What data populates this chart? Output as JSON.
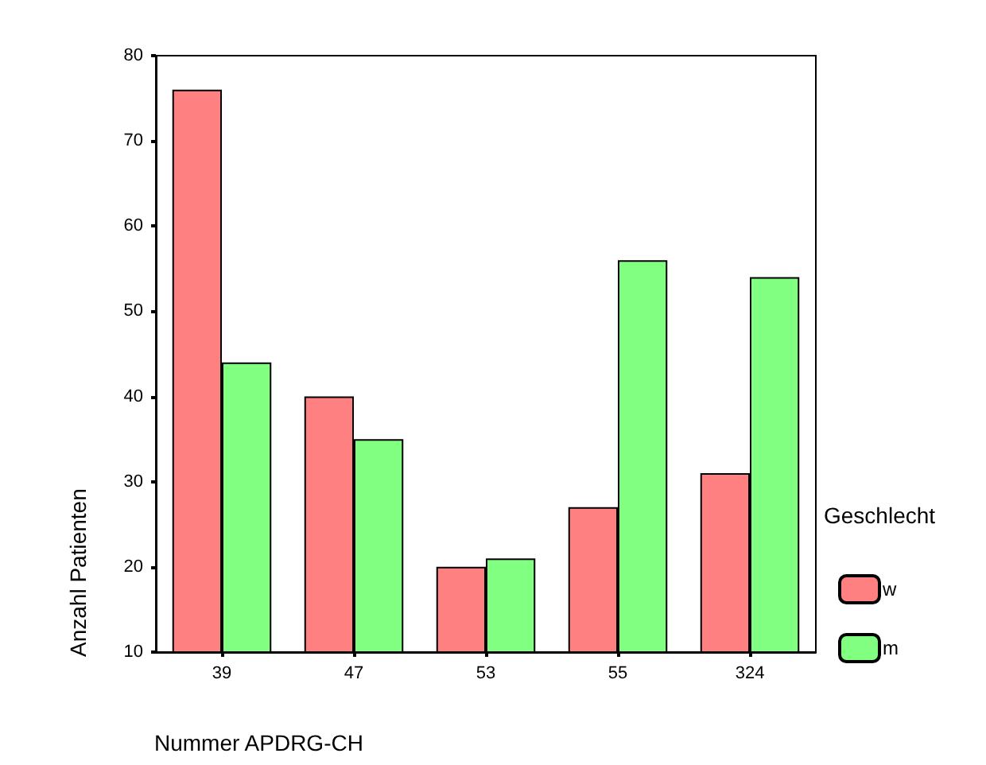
{
  "chart_data": {
    "type": "bar",
    "xlabel": "Nummer APDRG-CH",
    "ylabel": "Anzahl Patienten",
    "legend_title": "Geschlecht",
    "categories": [
      "39",
      "47",
      "53",
      "55",
      "324"
    ],
    "series": [
      {
        "name": "w",
        "color": "#ff8080",
        "values": [
          76,
          40,
          20,
          27,
          31
        ]
      },
      {
        "name": "m",
        "color": "#80ff80",
        "values": [
          44,
          35,
          21,
          56,
          54
        ]
      }
    ],
    "ylim": [
      10,
      80
    ],
    "yticks": [
      10,
      20,
      30,
      40,
      50,
      60,
      70,
      80
    ],
    "grid": false,
    "legend": "right"
  }
}
